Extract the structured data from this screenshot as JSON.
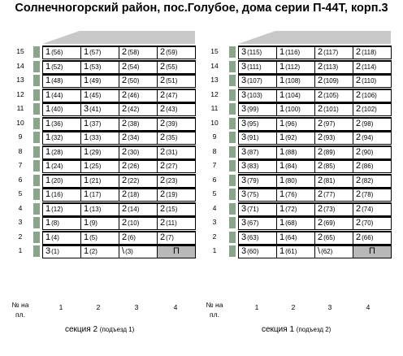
{
  "title": "Солнечногорский район, пос.Голубое, дома серии П-44Т, корп.3",
  "floors": [
    "15",
    "14",
    "13",
    "12",
    "11",
    "10",
    "9",
    "8",
    "7",
    "6",
    "5",
    "4",
    "3",
    "2",
    "1"
  ],
  "floor_label_line1": "№ на",
  "floor_label_line2": "пл.",
  "column_numbers": [
    "1",
    "2",
    "3",
    "4"
  ],
  "sections": [
    {
      "name": "секция 2",
      "entrance": "(подъезд 1)",
      "rows": [
        [
          [
            "1",
            "(56)"
          ],
          [
            "1",
            "(57)"
          ],
          [
            "2",
            "(58)"
          ],
          [
            "2",
            "(59)"
          ]
        ],
        [
          [
            "1",
            "(52)"
          ],
          [
            "1",
            "(53)"
          ],
          [
            "2",
            "(54)"
          ],
          [
            "2",
            "(55)"
          ]
        ],
        [
          [
            "1",
            "(48)"
          ],
          [
            "1",
            "(49)"
          ],
          [
            "2",
            "(50)"
          ],
          [
            "2",
            "(51)"
          ]
        ],
        [
          [
            "1",
            "(44)"
          ],
          [
            "1",
            "(45)"
          ],
          [
            "2",
            "(46)"
          ],
          [
            "2",
            "(47)"
          ]
        ],
        [
          [
            "1",
            "(40)"
          ],
          [
            "3",
            "(41)"
          ],
          [
            "2",
            "(42)"
          ],
          [
            "2",
            "(43)"
          ]
        ],
        [
          [
            "1",
            "(36)"
          ],
          [
            "1",
            "(37)"
          ],
          [
            "2",
            "(38)"
          ],
          [
            "2",
            "(39)"
          ]
        ],
        [
          [
            "1",
            "(32)"
          ],
          [
            "1",
            "(33)"
          ],
          [
            "2",
            "(34)"
          ],
          [
            "2",
            "(35)"
          ]
        ],
        [
          [
            "1",
            "(28)"
          ],
          [
            "1",
            "(29)"
          ],
          [
            "2",
            "(30)"
          ],
          [
            "2",
            "(31)"
          ]
        ],
        [
          [
            "1",
            "(24)"
          ],
          [
            "1",
            "(25)"
          ],
          [
            "2",
            "(26)"
          ],
          [
            "2",
            "(27)"
          ]
        ],
        [
          [
            "1",
            "(20)"
          ],
          [
            "1",
            "(21)"
          ],
          [
            "2",
            "(22)"
          ],
          [
            "2",
            "(23)"
          ]
        ],
        [
          [
            "1",
            "(16)"
          ],
          [
            "1",
            "(17)"
          ],
          [
            "2",
            "(18)"
          ],
          [
            "2",
            "(19)"
          ]
        ],
        [
          [
            "1",
            "(12)"
          ],
          [
            "1",
            "(13)"
          ],
          [
            "2",
            "(14)"
          ],
          [
            "2",
            "(15)"
          ]
        ],
        [
          [
            "1",
            "(8)"
          ],
          [
            "1",
            "(9)"
          ],
          [
            "2",
            "(10)"
          ],
          [
            "2",
            "(11)"
          ]
        ],
        [
          [
            "1",
            "(4)"
          ],
          [
            "1",
            "(5)"
          ],
          [
            "2",
            "(6)"
          ],
          [
            "2",
            "(7)"
          ]
        ],
        [
          [
            "3",
            "(1)"
          ],
          [
            "1",
            "(2)"
          ],
          [
            "\\",
            "(3)"
          ],
          [
            "П",
            ""
          ]
        ]
      ]
    },
    {
      "name": "секция 1",
      "entrance": "(подъезд 2)",
      "rows": [
        [
          [
            "3",
            "(115)"
          ],
          [
            "1",
            "(116)"
          ],
          [
            "2",
            "(117)"
          ],
          [
            "2",
            "(118)"
          ]
        ],
        [
          [
            "3",
            "(111)"
          ],
          [
            "1",
            "(112)"
          ],
          [
            "2",
            "(113)"
          ],
          [
            "2",
            "(114)"
          ]
        ],
        [
          [
            "3",
            "(107)"
          ],
          [
            "1",
            "(108)"
          ],
          [
            "2",
            "(109)"
          ],
          [
            "2",
            "(110)"
          ]
        ],
        [
          [
            "3",
            "(103)"
          ],
          [
            "1",
            "(104)"
          ],
          [
            "2",
            "(105)"
          ],
          [
            "2",
            "(106)"
          ]
        ],
        [
          [
            "3",
            "(99)"
          ],
          [
            "1",
            "(100)"
          ],
          [
            "2",
            "(101)"
          ],
          [
            "2",
            "(102)"
          ]
        ],
        [
          [
            "3",
            "(95)"
          ],
          [
            "1",
            "(96)"
          ],
          [
            "2",
            "(97)"
          ],
          [
            "2",
            "(98)"
          ]
        ],
        [
          [
            "3",
            "(91)"
          ],
          [
            "1",
            "(92)"
          ],
          [
            "2",
            "(93)"
          ],
          [
            "2",
            "(94)"
          ]
        ],
        [
          [
            "3",
            "(87)"
          ],
          [
            "1",
            "(88)"
          ],
          [
            "2",
            "(89)"
          ],
          [
            "2",
            "(90)"
          ]
        ],
        [
          [
            "3",
            "(83)"
          ],
          [
            "1",
            "(84)"
          ],
          [
            "2",
            "(85)"
          ],
          [
            "2",
            "(86)"
          ]
        ],
        [
          [
            "3",
            "(79)"
          ],
          [
            "1",
            "(80)"
          ],
          [
            "2",
            "(81)"
          ],
          [
            "2",
            "(82)"
          ]
        ],
        [
          [
            "3",
            "(75)"
          ],
          [
            "1",
            "(76)"
          ],
          [
            "2",
            "(77)"
          ],
          [
            "2",
            "(78)"
          ]
        ],
        [
          [
            "3",
            "(71)"
          ],
          [
            "1",
            "(72)"
          ],
          [
            "2",
            "(73)"
          ],
          [
            "2",
            "(74)"
          ]
        ],
        [
          [
            "3",
            "(67)"
          ],
          [
            "1",
            "(68)"
          ],
          [
            "2",
            "(69)"
          ],
          [
            "2",
            "(70)"
          ]
        ],
        [
          [
            "3",
            "(63)"
          ],
          [
            "1",
            "(64)"
          ],
          [
            "2",
            "(65)"
          ],
          [
            "2",
            "(66)"
          ]
        ],
        [
          [
            "3",
            "(60)"
          ],
          [
            "1",
            "(61)"
          ],
          [
            "\\",
            "(62)"
          ],
          [
            "П",
            ""
          ]
        ]
      ]
    }
  ]
}
